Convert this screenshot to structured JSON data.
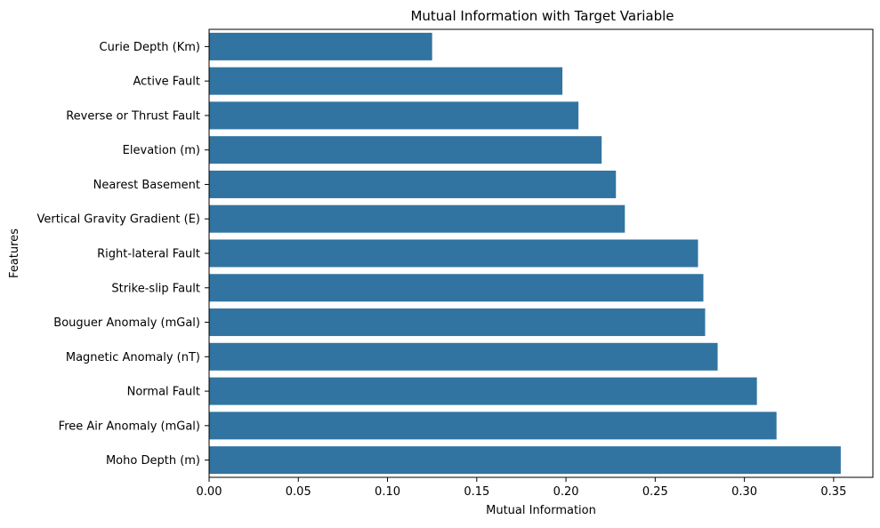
{
  "chart_data": {
    "type": "bar",
    "orientation": "horizontal",
    "title": "Mutual Information with Target Variable",
    "xlabel": "Mutual Information",
    "ylabel": "Features",
    "xlim": [
      0,
      0.372
    ],
    "xticks": [
      "0.00",
      "0.05",
      "0.10",
      "0.15",
      "0.20",
      "0.25",
      "0.30",
      "0.35"
    ],
    "grid": false,
    "legend": "none",
    "bar_color": "#3274a1",
    "categories": [
      "Curie Depth (Km)",
      "Active Fault",
      "Reverse or Thrust Fault",
      "Elevation (m)",
      "Nearest Basement",
      "Vertical Gravity Gradient (E)",
      "Right-lateral Fault",
      "Strike-slip Fault",
      "Bouguer Anomaly (mGal)",
      "Magnetic Anomaly (nT)",
      "Normal Fault",
      "Free Air Anomaly (mGal)",
      "Moho Depth (m)"
    ],
    "values": [
      0.125,
      0.198,
      0.207,
      0.22,
      0.228,
      0.233,
      0.274,
      0.277,
      0.278,
      0.285,
      0.307,
      0.318,
      0.354
    ]
  }
}
